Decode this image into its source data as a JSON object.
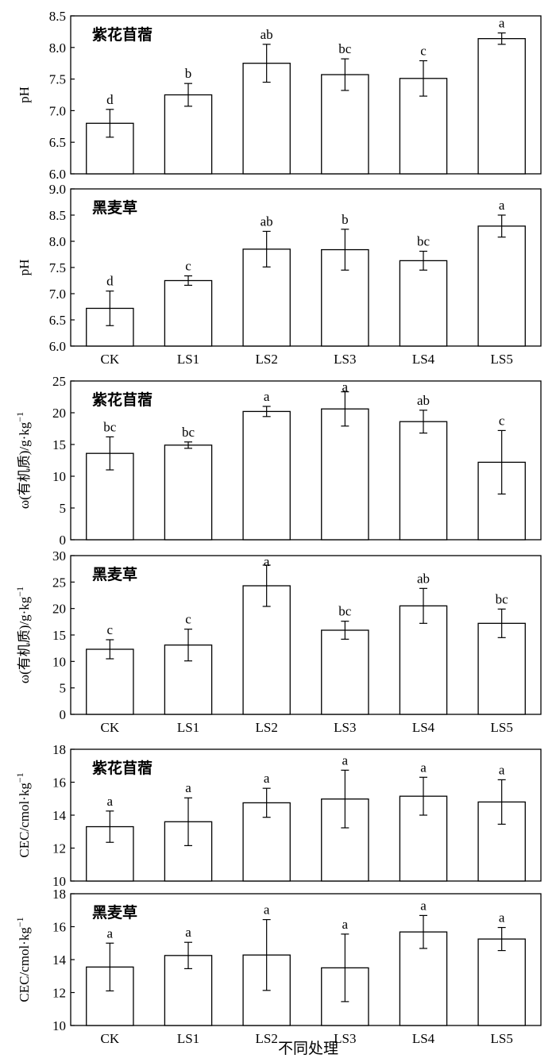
{
  "figure": {
    "xlabel": "不同处理"
  },
  "chart_data": [
    {
      "type": "bar",
      "title": "紫花苜蓿",
      "ylabel": "pH",
      "ylim": [
        6.0,
        8.5
      ],
      "yticks": [
        "6.0",
        "6.5",
        "7.0",
        "7.5",
        "8.0",
        "8.5"
      ],
      "categories": [
        "CK",
        "LS1",
        "LS2",
        "LS3",
        "LS4",
        "LS5"
      ],
      "values": [
        6.8,
        7.25,
        7.75,
        7.57,
        7.51,
        8.14
      ],
      "errors": [
        0.22,
        0.18,
        0.3,
        0.25,
        0.28,
        0.09
      ],
      "letters": [
        "d",
        "b",
        "ab",
        "bc",
        "c",
        "a"
      ],
      "show_xticks": false
    },
    {
      "type": "bar",
      "title": "黑麦草",
      "ylabel": "pH",
      "ylim": [
        6.0,
        9.0
      ],
      "yticks": [
        "6.0",
        "6.5",
        "7.0",
        "7.5",
        "8.0",
        "8.5",
        "9.0"
      ],
      "categories": [
        "CK",
        "LS1",
        "LS2",
        "LS3",
        "LS4",
        "LS5"
      ],
      "values": [
        6.72,
        7.25,
        7.85,
        7.84,
        7.63,
        8.29
      ],
      "errors": [
        0.33,
        0.09,
        0.34,
        0.39,
        0.18,
        0.21
      ],
      "letters": [
        "d",
        "c",
        "ab",
        "b",
        "bc",
        "a"
      ],
      "show_xticks": true
    },
    {
      "type": "bar",
      "title": "紫花苜蓿",
      "ylabel": "ω(有机质)/g·kg",
      "ylabel_sup": "−1",
      "ylim": [
        0,
        25
      ],
      "yticks": [
        "0",
        "5",
        "10",
        "15",
        "20",
        "25"
      ],
      "categories": [
        "CK",
        "LS1",
        "LS2",
        "LS3",
        "LS4",
        "LS5"
      ],
      "values": [
        13.6,
        14.9,
        20.2,
        20.6,
        18.6,
        12.2
      ],
      "errors": [
        2.6,
        0.5,
        0.8,
        2.7,
        1.8,
        5.0
      ],
      "letters": [
        "bc",
        "bc",
        "a",
        "a",
        "ab",
        "c"
      ],
      "show_xticks": false
    },
    {
      "type": "bar",
      "title": "黑麦草",
      "ylabel": "ω(有机质)/g·kg",
      "ylabel_sup": "−1",
      "ylim": [
        0,
        30
      ],
      "yticks": [
        "0",
        "5",
        "10",
        "15",
        "20",
        "25",
        "30"
      ],
      "categories": [
        "CK",
        "LS1",
        "LS2",
        "LS3",
        "LS4",
        "LS5"
      ],
      "values": [
        12.3,
        13.1,
        24.3,
        15.9,
        20.5,
        17.2
      ],
      "errors": [
        1.8,
        3.0,
        3.9,
        1.7,
        3.3,
        2.7
      ],
      "letters": [
        "c",
        "c",
        "a",
        "bc",
        "ab",
        "bc"
      ],
      "show_xticks": true
    },
    {
      "type": "bar",
      "title": "紫花苜蓿",
      "ylabel": "CEC/cmol·kg",
      "ylabel_sup": "−1",
      "ylim": [
        10,
        18
      ],
      "yticks": [
        "10",
        "12",
        "14",
        "16",
        "18"
      ],
      "categories": [
        "CK",
        "LS1",
        "LS2",
        "LS3",
        "LS4",
        "LS5"
      ],
      "values": [
        13.3,
        13.6,
        14.75,
        14.98,
        15.15,
        14.8
      ],
      "errors": [
        0.95,
        1.45,
        0.88,
        1.75,
        1.15,
        1.35
      ],
      "letters": [
        "a",
        "a",
        "a",
        "a",
        "a",
        "a"
      ],
      "show_xticks": false
    },
    {
      "type": "bar",
      "title": "黑麦草",
      "ylabel": "CEC/cmol·kg",
      "ylabel_sup": "−1",
      "ylim": [
        10,
        18
      ],
      "yticks": [
        "10",
        "12",
        "14",
        "16",
        "18"
      ],
      "categories": [
        "CK",
        "LS1",
        "LS2",
        "LS3",
        "LS4",
        "LS5"
      ],
      "values": [
        13.55,
        14.25,
        14.28,
        13.5,
        15.68,
        15.25
      ],
      "errors": [
        1.45,
        0.8,
        2.15,
        2.05,
        1.0,
        0.7
      ],
      "letters": [
        "a",
        "a",
        "a",
        "a",
        "a",
        "a"
      ],
      "show_xticks": true
    }
  ]
}
